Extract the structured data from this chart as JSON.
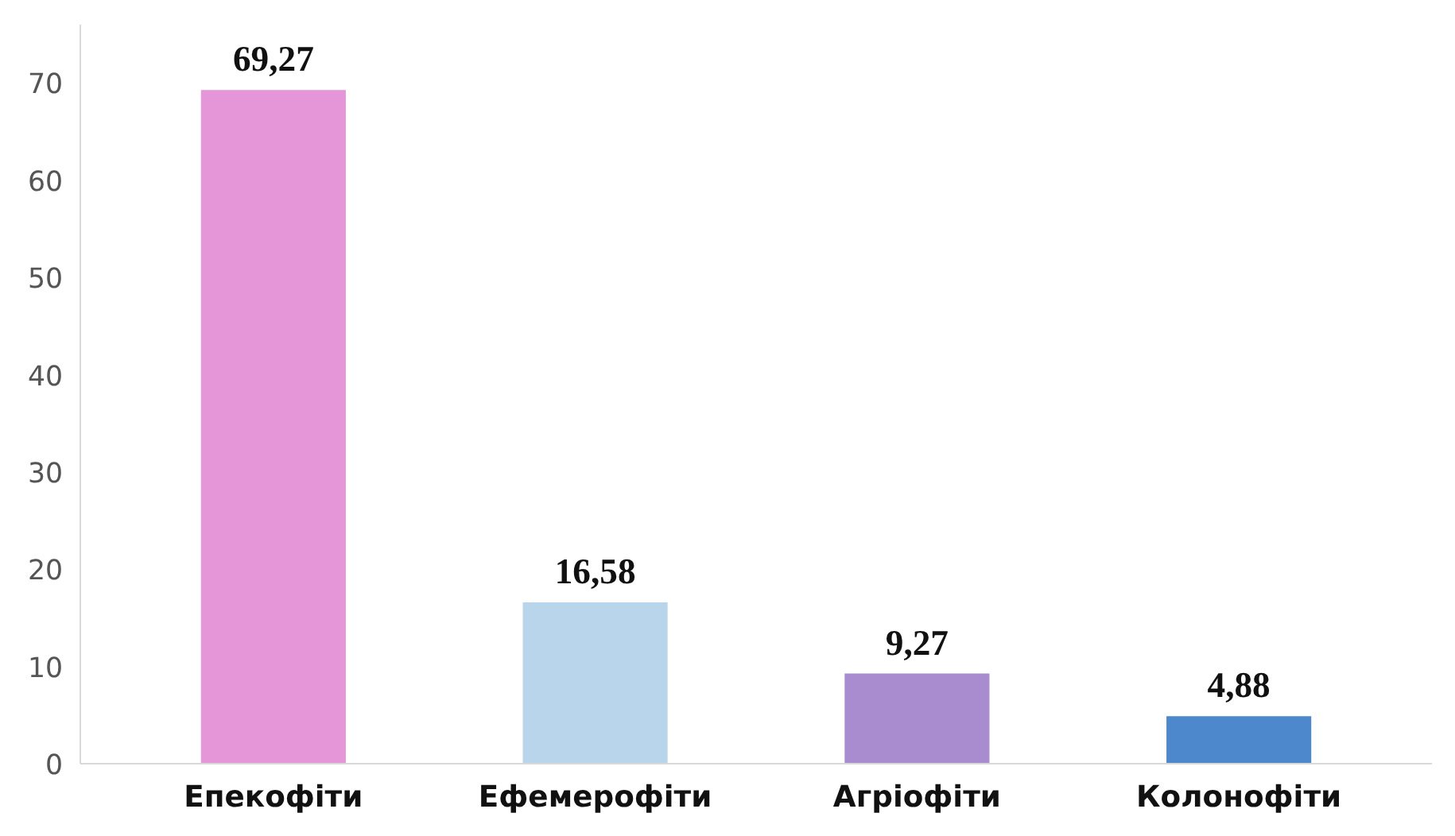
{
  "chart_data": {
    "type": "bar",
    "categories": [
      "Епекофіти",
      "Ефемерофіти",
      "Агріофіти",
      "Колонофіти"
    ],
    "values": [
      69.27,
      16.58,
      9.27,
      4.88
    ],
    "colors": [
      "#e596d8",
      "#b9d5ec",
      "#a98bcf",
      "#4d88cc"
    ],
    "value_labels": [
      "69,27",
      "16,58",
      "9,27",
      "4,88"
    ],
    "ylim": [
      0,
      76
    ],
    "yticks": [
      0,
      10,
      20,
      30,
      40,
      50,
      60,
      70
    ],
    "grid": false
  }
}
